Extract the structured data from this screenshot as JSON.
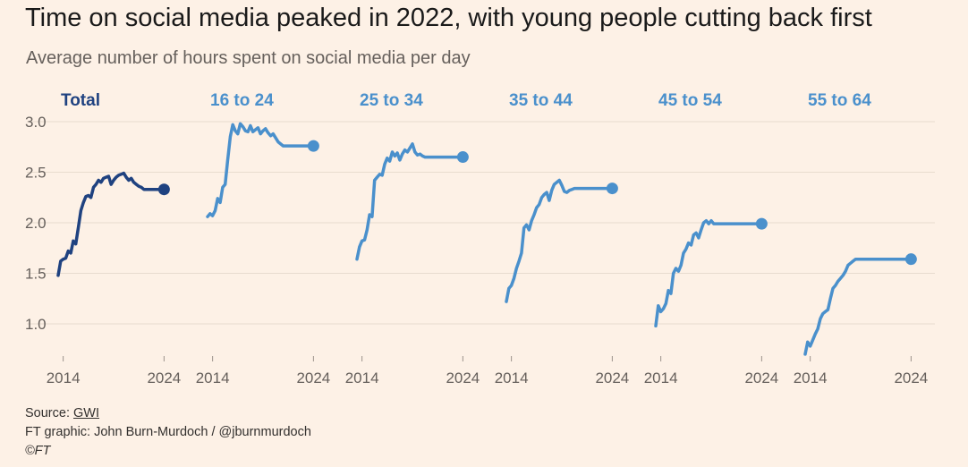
{
  "header": {
    "title": "Time on social media peaked in 2022, with young people cutting back first",
    "subtitle": "Average number of hours spent on social media per day"
  },
  "footer": {
    "source_prefix": "Source: ",
    "source_link": "GWI",
    "credit": "FT graphic: John Burn-Murdoch / @jburnmurdoch",
    "copyright": "©FT"
  },
  "colors": {
    "background": "#fdf1e6",
    "total": "#1f4280",
    "age_groups": "#4a90cc",
    "grid": "#e8dccf",
    "tick_text": "#66605c"
  },
  "chart_data": {
    "type": "line",
    "layout": "small-multiples",
    "x_ticks": [
      "2014",
      "2024"
    ],
    "y_ticks": [
      "1.0",
      "1.5",
      "2.0",
      "2.5",
      "3.0"
    ],
    "xlim": [
      2013.5,
      2024.5
    ],
    "ylim": [
      0.75,
      3.05
    ],
    "series": [
      {
        "name": "Total",
        "highlight": true,
        "x": [
          2013.5,
          2013.75,
          2014,
          2014.25,
          2014.5,
          2014.75,
          2015,
          2015.25,
          2015.5,
          2015.75,
          2016,
          2016.25,
          2016.5,
          2016.75,
          2017,
          2017.25,
          2017.5,
          2017.75,
          2018,
          2018.25,
          2018.5,
          2018.75,
          2019,
          2019.25,
          2019.5,
          2019.75,
          2020,
          2020.25,
          2020.5,
          2020.75,
          2021,
          2021.25,
          2021.5,
          2021.75,
          2022,
          2022.25,
          2022.5,
          2022.75,
          2023,
          2023.25,
          2023.5,
          2023.75,
          2024
        ],
        "y": [
          1.48,
          1.62,
          1.64,
          1.65,
          1.72,
          1.7,
          1.82,
          1.79,
          1.95,
          2.12,
          2.2,
          2.26,
          2.27,
          2.25,
          2.35,
          2.38,
          2.42,
          2.4,
          2.44,
          2.45,
          2.46,
          2.38,
          2.42,
          2.45,
          2.47,
          2.48,
          2.49,
          2.45,
          2.42,
          2.44,
          2.4,
          2.38,
          2.36,
          2.35,
          2.33,
          2.33,
          2.33,
          2.33,
          2.33,
          2.33,
          2.33,
          2.33,
          2.33
        ]
      },
      {
        "name": "16 to 24",
        "x": [
          2013.5,
          2013.75,
          2014,
          2014.25,
          2014.5,
          2014.75,
          2015,
          2015.25,
          2015.5,
          2015.75,
          2016,
          2016.25,
          2016.5,
          2016.75,
          2017,
          2017.25,
          2017.5,
          2017.75,
          2018,
          2018.25,
          2018.5,
          2018.75,
          2019,
          2019.25,
          2019.5,
          2019.75,
          2020,
          2020.25,
          2020.5,
          2020.75,
          2021,
          2021.25,
          2021.5,
          2021.75,
          2022,
          2022.25,
          2022.5,
          2022.75,
          2023,
          2023.25,
          2023.5,
          2023.75,
          2024
        ],
        "y": [
          2.06,
          2.09,
          2.07,
          2.12,
          2.24,
          2.2,
          2.35,
          2.38,
          2.62,
          2.85,
          2.97,
          2.91,
          2.88,
          2.98,
          2.95,
          2.91,
          2.9,
          2.96,
          2.9,
          2.92,
          2.94,
          2.88,
          2.91,
          2.93,
          2.89,
          2.86,
          2.88,
          2.84,
          2.8,
          2.78,
          2.76,
          2.76,
          2.76,
          2.76,
          2.76,
          2.76,
          2.76,
          2.76,
          2.76,
          2.76,
          2.76,
          2.76,
          2.76
        ]
      },
      {
        "name": "25 to 34",
        "x": [
          2013.5,
          2013.75,
          2014,
          2014.25,
          2014.5,
          2014.75,
          2015,
          2015.25,
          2015.5,
          2015.75,
          2016,
          2016.25,
          2016.5,
          2016.75,
          2017,
          2017.25,
          2017.5,
          2017.75,
          2018,
          2018.25,
          2018.5,
          2018.75,
          2019,
          2019.25,
          2019.5,
          2019.75,
          2020,
          2020.25,
          2020.5,
          2020.75,
          2021,
          2021.25,
          2021.5,
          2021.75,
          2022,
          2022.25,
          2022.5,
          2022.75,
          2023,
          2023.25,
          2023.5,
          2023.75,
          2024
        ],
        "y": [
          1.64,
          1.76,
          1.82,
          1.83,
          1.93,
          2.08,
          2.06,
          2.42,
          2.45,
          2.48,
          2.47,
          2.58,
          2.64,
          2.61,
          2.7,
          2.66,
          2.69,
          2.62,
          2.68,
          2.72,
          2.7,
          2.74,
          2.78,
          2.7,
          2.67,
          2.68,
          2.66,
          2.65,
          2.65,
          2.65,
          2.65,
          2.65,
          2.65,
          2.65,
          2.65,
          2.65,
          2.65,
          2.65,
          2.65,
          2.65,
          2.65,
          2.65,
          2.65
        ]
      },
      {
        "name": "35 to 44",
        "x": [
          2013.5,
          2013.75,
          2014,
          2014.25,
          2014.5,
          2014.75,
          2015,
          2015.25,
          2015.5,
          2015.75,
          2016,
          2016.25,
          2016.5,
          2016.75,
          2017,
          2017.25,
          2017.5,
          2017.75,
          2018,
          2018.25,
          2018.5,
          2018.75,
          2019,
          2019.25,
          2019.5,
          2019.75,
          2020,
          2020.25,
          2020.5,
          2020.75,
          2021,
          2021.25,
          2021.5,
          2021.75,
          2022,
          2022.25,
          2022.5,
          2022.75,
          2023,
          2023.25,
          2023.5,
          2023.75,
          2024
        ],
        "y": [
          1.22,
          1.35,
          1.38,
          1.45,
          1.55,
          1.62,
          1.7,
          1.95,
          1.98,
          1.93,
          2.02,
          2.08,
          2.15,
          2.18,
          2.25,
          2.28,
          2.3,
          2.22,
          2.32,
          2.38,
          2.4,
          2.42,
          2.37,
          2.31,
          2.3,
          2.32,
          2.33,
          2.34,
          2.34,
          2.34,
          2.34,
          2.34,
          2.34,
          2.34,
          2.34,
          2.34,
          2.34,
          2.34,
          2.34,
          2.34,
          2.34,
          2.34,
          2.34
        ]
      },
      {
        "name": "45 to 54",
        "x": [
          2013.5,
          2013.75,
          2014,
          2014.25,
          2014.5,
          2014.75,
          2015,
          2015.25,
          2015.5,
          2015.75,
          2016,
          2016.25,
          2016.5,
          2016.75,
          2017,
          2017.25,
          2017.5,
          2017.75,
          2018,
          2018.25,
          2018.5,
          2018.75,
          2019,
          2019.25,
          2019.5,
          2019.75,
          2020,
          2020.25,
          2020.5,
          2020.75,
          2021,
          2021.25,
          2021.5,
          2021.75,
          2022,
          2022.25,
          2022.5,
          2022.75,
          2023,
          2023.25,
          2023.5,
          2023.75,
          2024
        ],
        "y": [
          0.98,
          1.18,
          1.12,
          1.15,
          1.2,
          1.33,
          1.3,
          1.5,
          1.55,
          1.52,
          1.58,
          1.7,
          1.74,
          1.8,
          1.78,
          1.88,
          1.9,
          1.85,
          1.93,
          2.0,
          2.02,
          1.99,
          2.02,
          1.99,
          1.99,
          1.99,
          1.99,
          1.99,
          1.99,
          1.99,
          1.99,
          1.99,
          1.99,
          1.99,
          1.99,
          1.99,
          1.99,
          1.99,
          1.99,
          1.99,
          1.99,
          1.99,
          1.99
        ]
      },
      {
        "name": "55 to 64",
        "x": [
          2013.5,
          2013.75,
          2014,
          2014.25,
          2014.5,
          2014.75,
          2015,
          2015.25,
          2015.5,
          2015.75,
          2016,
          2016.25,
          2016.5,
          2016.75,
          2017,
          2017.25,
          2017.5,
          2017.75,
          2018,
          2018.25,
          2018.5,
          2018.75,
          2019,
          2019.25,
          2019.5,
          2019.75,
          2020,
          2020.25,
          2020.5,
          2020.75,
          2021,
          2021.25,
          2021.5,
          2021.75,
          2022,
          2022.25,
          2022.5,
          2022.75,
          2023,
          2023.25,
          2023.5,
          2023.75,
          2024
        ],
        "y": [
          0.7,
          0.82,
          0.78,
          0.84,
          0.9,
          0.95,
          1.05,
          1.1,
          1.12,
          1.14,
          1.25,
          1.35,
          1.38,
          1.42,
          1.45,
          1.48,
          1.52,
          1.58,
          1.6,
          1.62,
          1.64,
          1.64,
          1.64,
          1.64,
          1.64,
          1.64,
          1.64,
          1.64,
          1.64,
          1.64,
          1.64,
          1.64,
          1.64,
          1.64,
          1.64,
          1.64,
          1.64,
          1.64,
          1.64,
          1.64,
          1.64,
          1.64,
          1.64
        ]
      }
    ]
  }
}
